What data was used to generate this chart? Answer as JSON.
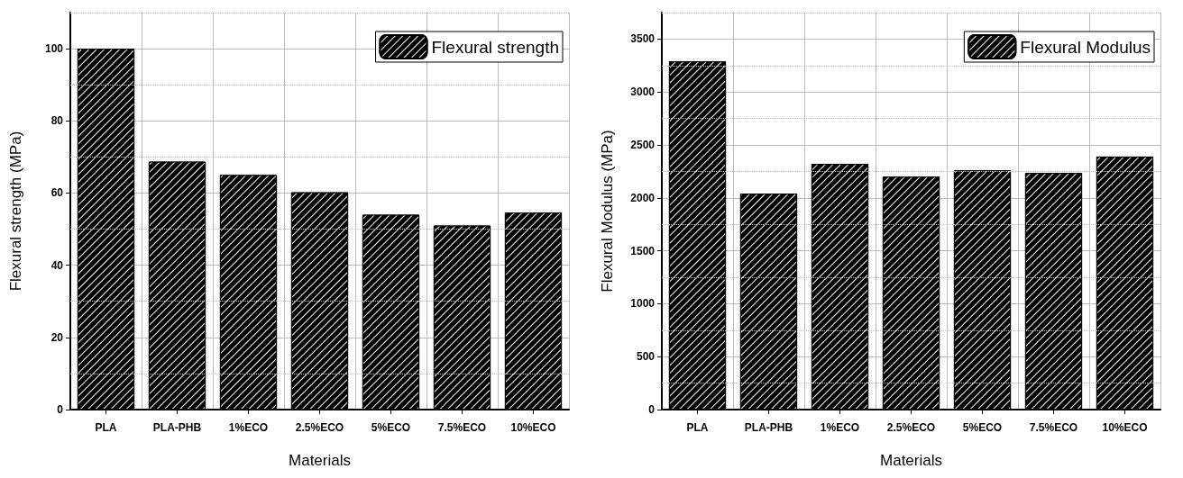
{
  "chart_data": [
    {
      "type": "bar",
      "xlabel": "Materials",
      "ylabel": "Flexural strength (MPa)",
      "categories": [
        "PLA",
        "PLA-PHB",
        "1%ECO",
        "2.5%ECO",
        "5%ECO",
        "7.5%ECO",
        "10%ECO"
      ],
      "series": [
        {
          "name": "Flexural strength",
          "color": "#000000",
          "values": [
            100,
            68.7,
            65,
            60.2,
            54,
            51,
            54.6
          ]
        }
      ],
      "ylim": [
        0,
        110
      ],
      "yticks": [
        0,
        20,
        40,
        60,
        80,
        100
      ],
      "grid": true,
      "legend": "top right"
    },
    {
      "type": "bar",
      "xlabel": "Materials",
      "ylabel": "Flexural Modulus (MPa)",
      "categories": [
        "PLA",
        "PLA-PHB",
        "1%ECO",
        "2.5%ECO",
        "5%ECO",
        "7.5%ECO",
        "10%ECO"
      ],
      "series": [
        {
          "name": "Flexural Modulus",
          "color": "#000000",
          "values": [
            3290,
            2040,
            2320,
            2200,
            2260,
            2235,
            2390
          ]
        }
      ],
      "ylim": [
        0,
        3750
      ],
      "yticks": [
        0,
        500,
        1000,
        1500,
        2000,
        2500,
        3000,
        3500
      ],
      "grid": true,
      "legend": "top right"
    }
  ]
}
